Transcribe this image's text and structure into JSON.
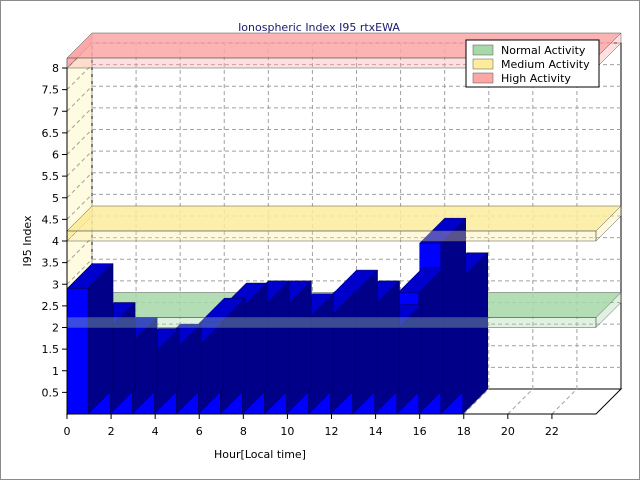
{
  "chart_data": {
    "type": "bar",
    "title": "Ionospheric Index I95 rtxEWA",
    "xlabel": "Hour[Local time]",
    "ylabel": "I95 Index",
    "ylim": [
      0,
      8
    ],
    "xlim": [
      0,
      24
    ],
    "x_ticks": [
      "0",
      "2",
      "4",
      "6",
      "8",
      "10",
      "12",
      "14",
      "16",
      "18",
      "20",
      "22"
    ],
    "y_ticks": [
      "0.5",
      "1",
      "1.5",
      "2",
      "2.5",
      "3",
      "3.5",
      "4",
      "4.5",
      "5",
      "5.5",
      "6",
      "6.5",
      "7",
      "7.5",
      "8"
    ],
    "grid": true,
    "view": "3d",
    "legend_position": "top-right",
    "bar_color": "#0000ff",
    "series": [
      {
        "x": [
          0,
          1,
          2,
          3,
          4,
          5,
          6,
          7,
          8,
          9,
          10,
          11,
          12,
          13,
          14,
          15,
          16,
          17
        ],
        "values": [
          2.9,
          2.0,
          1.65,
          1.4,
          1.5,
          1.55,
          2.1,
          2.45,
          2.5,
          2.5,
          2.2,
          2.25,
          2.75,
          2.5,
          1.95,
          2.8,
          3.95,
          3.15
        ]
      }
    ],
    "bands": [
      {
        "name": "Normal Activity",
        "value": 2.0,
        "color": "#a6d8a8"
      },
      {
        "name": "Medium Activity",
        "value": 4.0,
        "color": "#fcec9c"
      },
      {
        "name": "High Activity",
        "value": 8.0,
        "color": "#fca6a6"
      }
    ]
  }
}
